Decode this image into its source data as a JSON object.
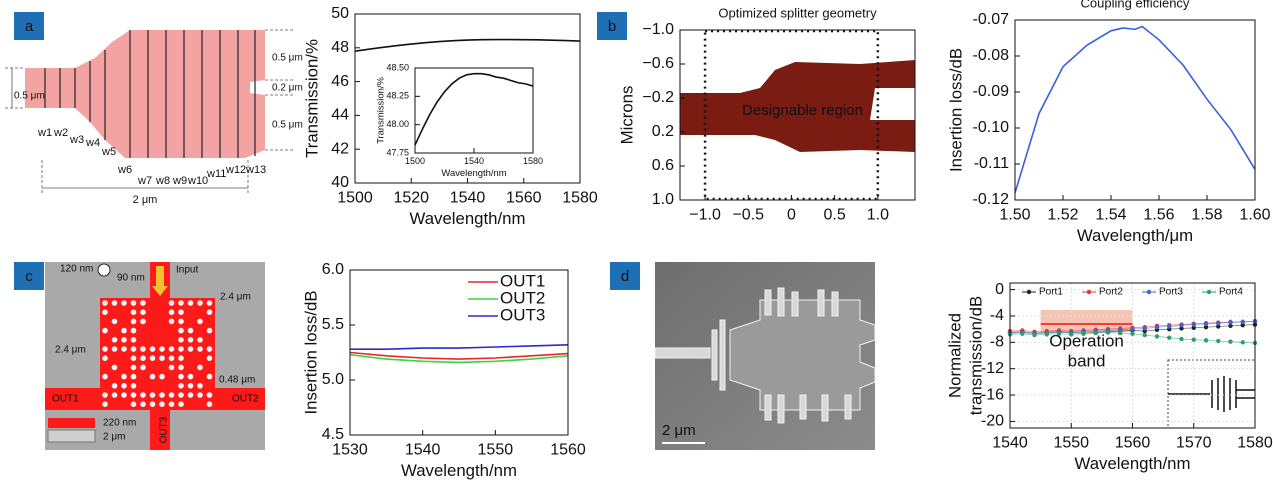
{
  "panel_labels": [
    "a",
    "b",
    "c",
    "d"
  ],
  "diagram_a": {
    "dims": [
      "0.5 μm",
      "0.5 μm",
      "0.2 μm",
      "0.5 μm"
    ],
    "widths": [
      "w1",
      "w2",
      "w3",
      "w4",
      "w5",
      "w6",
      "w7",
      "w8",
      "w9",
      "w10",
      "w11",
      "w12",
      "w13"
    ],
    "length": "2 μm"
  },
  "diagram_c": {
    "hole": "120 nm",
    "pitch": "90 nm",
    "input": "Input",
    "width": "2.4 μm",
    "height": "2.4 μm",
    "port_width": "0.48 μm",
    "ports": [
      "OUT1",
      "OUT2",
      "OUT3"
    ],
    "thickness": "220 nm",
    "substrate": "2 μm"
  },
  "sem": {
    "scale": "2 μm"
  },
  "chart_data": [
    {
      "type": "line",
      "xlabel": "Wavelength/nm",
      "ylabel": "Transmission/%",
      "color": "#111111",
      "x": [
        1500,
        1505,
        1510,
        1515,
        1520,
        1525,
        1530,
        1535,
        1540,
        1545,
        1550,
        1555,
        1560,
        1565,
        1570,
        1575,
        1580
      ],
      "values": [
        47.8,
        47.92,
        48.03,
        48.13,
        48.22,
        48.3,
        48.37,
        48.42,
        48.46,
        48.48,
        48.49,
        48.49,
        48.48,
        48.47,
        48.45,
        48.43,
        48.4
      ],
      "xlim": [
        1500,
        1580
      ],
      "ylim": [
        40,
        50
      ],
      "xticks": [
        1500,
        1520,
        1540,
        1560,
        1580
      ],
      "yticks": [
        40,
        42,
        44,
        46,
        48,
        50
      ]
    },
    {
      "type": "line",
      "xlabel": "Wavelength/nm",
      "ylabel": "Transmission/%",
      "color": "#111111",
      "x": [
        1500,
        1505,
        1510,
        1515,
        1520,
        1525,
        1530,
        1535,
        1540,
        1545,
        1550,
        1555,
        1560,
        1565,
        1570,
        1575,
        1580
      ],
      "values": [
        47.82,
        47.96,
        48.09,
        48.2,
        48.29,
        48.36,
        48.41,
        48.44,
        48.45,
        48.45,
        48.44,
        48.42,
        48.41,
        48.39,
        48.37,
        48.36,
        48.34
      ],
      "xlim": [
        1500,
        1580
      ],
      "ylim": [
        47.75,
        48.5
      ],
      "xticks": [
        1500,
        1540,
        1580
      ],
      "yticks": [
        47.75,
        {
          "value": 48,
          "label": "48.00"
        },
        48.25,
        {
          "value": 48.5,
          "label": "48.50"
        }
      ]
    },
    {
      "type": "image",
      "title": "Optimized splitter geometry",
      "ylabel": "Microns",
      "annotation": "Designable region",
      "color": "#7b1c12",
      "xlim": [
        -1.29,
        1.43
      ],
      "ylim": [
        -1,
        1
      ],
      "y_inverted": true,
      "region": [
        -1,
        1
      ],
      "xticks": [
        {
          "value": -1,
          "label": "−1.0"
        },
        {
          "value": -0.5,
          "label": "−0.5"
        },
        0,
        0.5,
        {
          "value": 1,
          "label": "1.0"
        }
      ],
      "yticks": [
        {
          "value": -1,
          "label": "−1.0"
        },
        {
          "value": -0.6,
          "label": "−0.6"
        },
        {
          "value": -0.2,
          "label": "−0.2"
        },
        0.2,
        0.6,
        {
          "value": 1,
          "label": "1.0"
        }
      ]
    },
    {
      "type": "line",
      "title": "Coupling efficiency",
      "xlabel": "Wavelength/μm",
      "ylabel": "Insertion loss/dB",
      "color": "#3a5fe0",
      "x": [
        1.5,
        1.51,
        1.52,
        1.53,
        1.54,
        1.545,
        1.55,
        1.553,
        1.56,
        1.57,
        1.58,
        1.59,
        1.6
      ],
      "values": [
        -0.118,
        -0.096,
        -0.083,
        -0.077,
        -0.073,
        -0.0722,
        -0.0726,
        -0.0718,
        -0.0755,
        -0.0825,
        -0.092,
        -0.1005,
        -0.1115
      ],
      "xlim": [
        1.5,
        1.6
      ],
      "ylim": [
        -0.12,
        -0.07
      ],
      "xticks": [
        {
          "value": 1.5,
          "label": "1.50"
        },
        1.52,
        1.54,
        1.56,
        1.58,
        {
          "value": 1.6,
          "label": "1.60"
        }
      ],
      "yticks": [
        -0.12,
        -0.11,
        {
          "value": -0.1,
          "label": "-0.10"
        },
        -0.09,
        -0.08,
        -0.07
      ]
    },
    {
      "type": "line",
      "xlabel": "Wavelength/nm",
      "ylabel": "Insertion loss/dB",
      "legend": "upper right",
      "x": [
        1530,
        1535,
        1540,
        1545,
        1550,
        1555,
        1560
      ],
      "series": [
        {
          "name": "OUT1",
          "color": "#e8262a",
          "values": [
            5.25,
            5.22,
            5.2,
            5.19,
            5.2,
            5.22,
            5.24
          ]
        },
        {
          "name": "OUT2",
          "color": "#3fd43f",
          "values": [
            5.23,
            5.19,
            5.17,
            5.16,
            5.17,
            5.19,
            5.22
          ]
        },
        {
          "name": "OUT3",
          "color": "#2a2ad0",
          "values": [
            5.28,
            5.28,
            5.29,
            5.29,
            5.3,
            5.31,
            5.32
          ]
        }
      ],
      "xlim": [
        1530,
        1560
      ],
      "ylim": [
        4.5,
        6
      ],
      "xticks": [
        1530,
        1540,
        1550,
        1560
      ],
      "yticks": [
        4.5,
        {
          "value": 5,
          "label": "5.0"
        },
        5.5,
        {
          "value": 6,
          "label": "6.0"
        }
      ]
    },
    {
      "type": "line",
      "markers": true,
      "grid": true,
      "legend": "top",
      "xlabel": "Wavelength/nm",
      "ylabel": [
        "Normalized",
        "transmission/dB"
      ],
      "annotation": [
        "Operation",
        "band"
      ],
      "band": [
        1545,
        1560
      ],
      "band_color": "#f6c4b4",
      "x": [
        1540,
        1542,
        1544,
        1546,
        1548,
        1550,
        1552,
        1554,
        1556,
        1558,
        1560,
        1562,
        1564,
        1566,
        1568,
        1570,
        1572,
        1574,
        1576,
        1578,
        1580
      ],
      "series": [
        {
          "name": "Port1",
          "color": "#222222",
          "values": [
            -6.5,
            -6.4,
            -6.6,
            -6.5,
            -6.4,
            -6.5,
            -6.6,
            -6.5,
            -6.4,
            -6.3,
            -6.2,
            -6.3,
            -6.1,
            -6.0,
            -5.9,
            -5.8,
            -5.7,
            -5.6,
            -5.5,
            -5.4,
            -5.3
          ]
        },
        {
          "name": "Port2",
          "color": "#e53a2a",
          "values": [
            -6.3,
            -6.2,
            -6.4,
            -6.3,
            -6.2,
            -6.3,
            -6.2,
            -6.1,
            -6.0,
            -5.9,
            -5.8,
            -5.7,
            -5.5,
            -5.4,
            -5.3,
            -5.2,
            -5.1,
            -5.0,
            -4.9,
            -4.9,
            -4.8
          ]
        },
        {
          "name": "Port3",
          "color": "#3a66d8",
          "values": [
            -6.6,
            -6.5,
            -6.7,
            -6.6,
            -6.5,
            -6.5,
            -6.4,
            -6.3,
            -6.2,
            -6.1,
            -6.0,
            -5.9,
            -5.7,
            -5.6,
            -5.4,
            -5.3,
            -5.2,
            -5.1,
            -5.0,
            -4.9,
            -4.8
          ]
        },
        {
          "name": "Port4",
          "color": "#2e9e6a",
          "values": [
            -6.8,
            -6.7,
            -6.9,
            -6.8,
            -6.7,
            -6.8,
            -6.7,
            -6.6,
            -6.5,
            -6.6,
            -6.7,
            -6.9,
            -7.1,
            -7.3,
            -7.5,
            -7.6,
            -7.7,
            -7.8,
            -7.9,
            -8.0,
            -8.1
          ]
        }
      ],
      "xlim": [
        1540,
        1580
      ],
      "ylim": [
        -21,
        1
      ],
      "xticks": [
        1540,
        1550,
        1560,
        1570,
        1580
      ],
      "yticks": [
        -20,
        -16,
        -12,
        -8,
        -4,
        0
      ]
    }
  ]
}
